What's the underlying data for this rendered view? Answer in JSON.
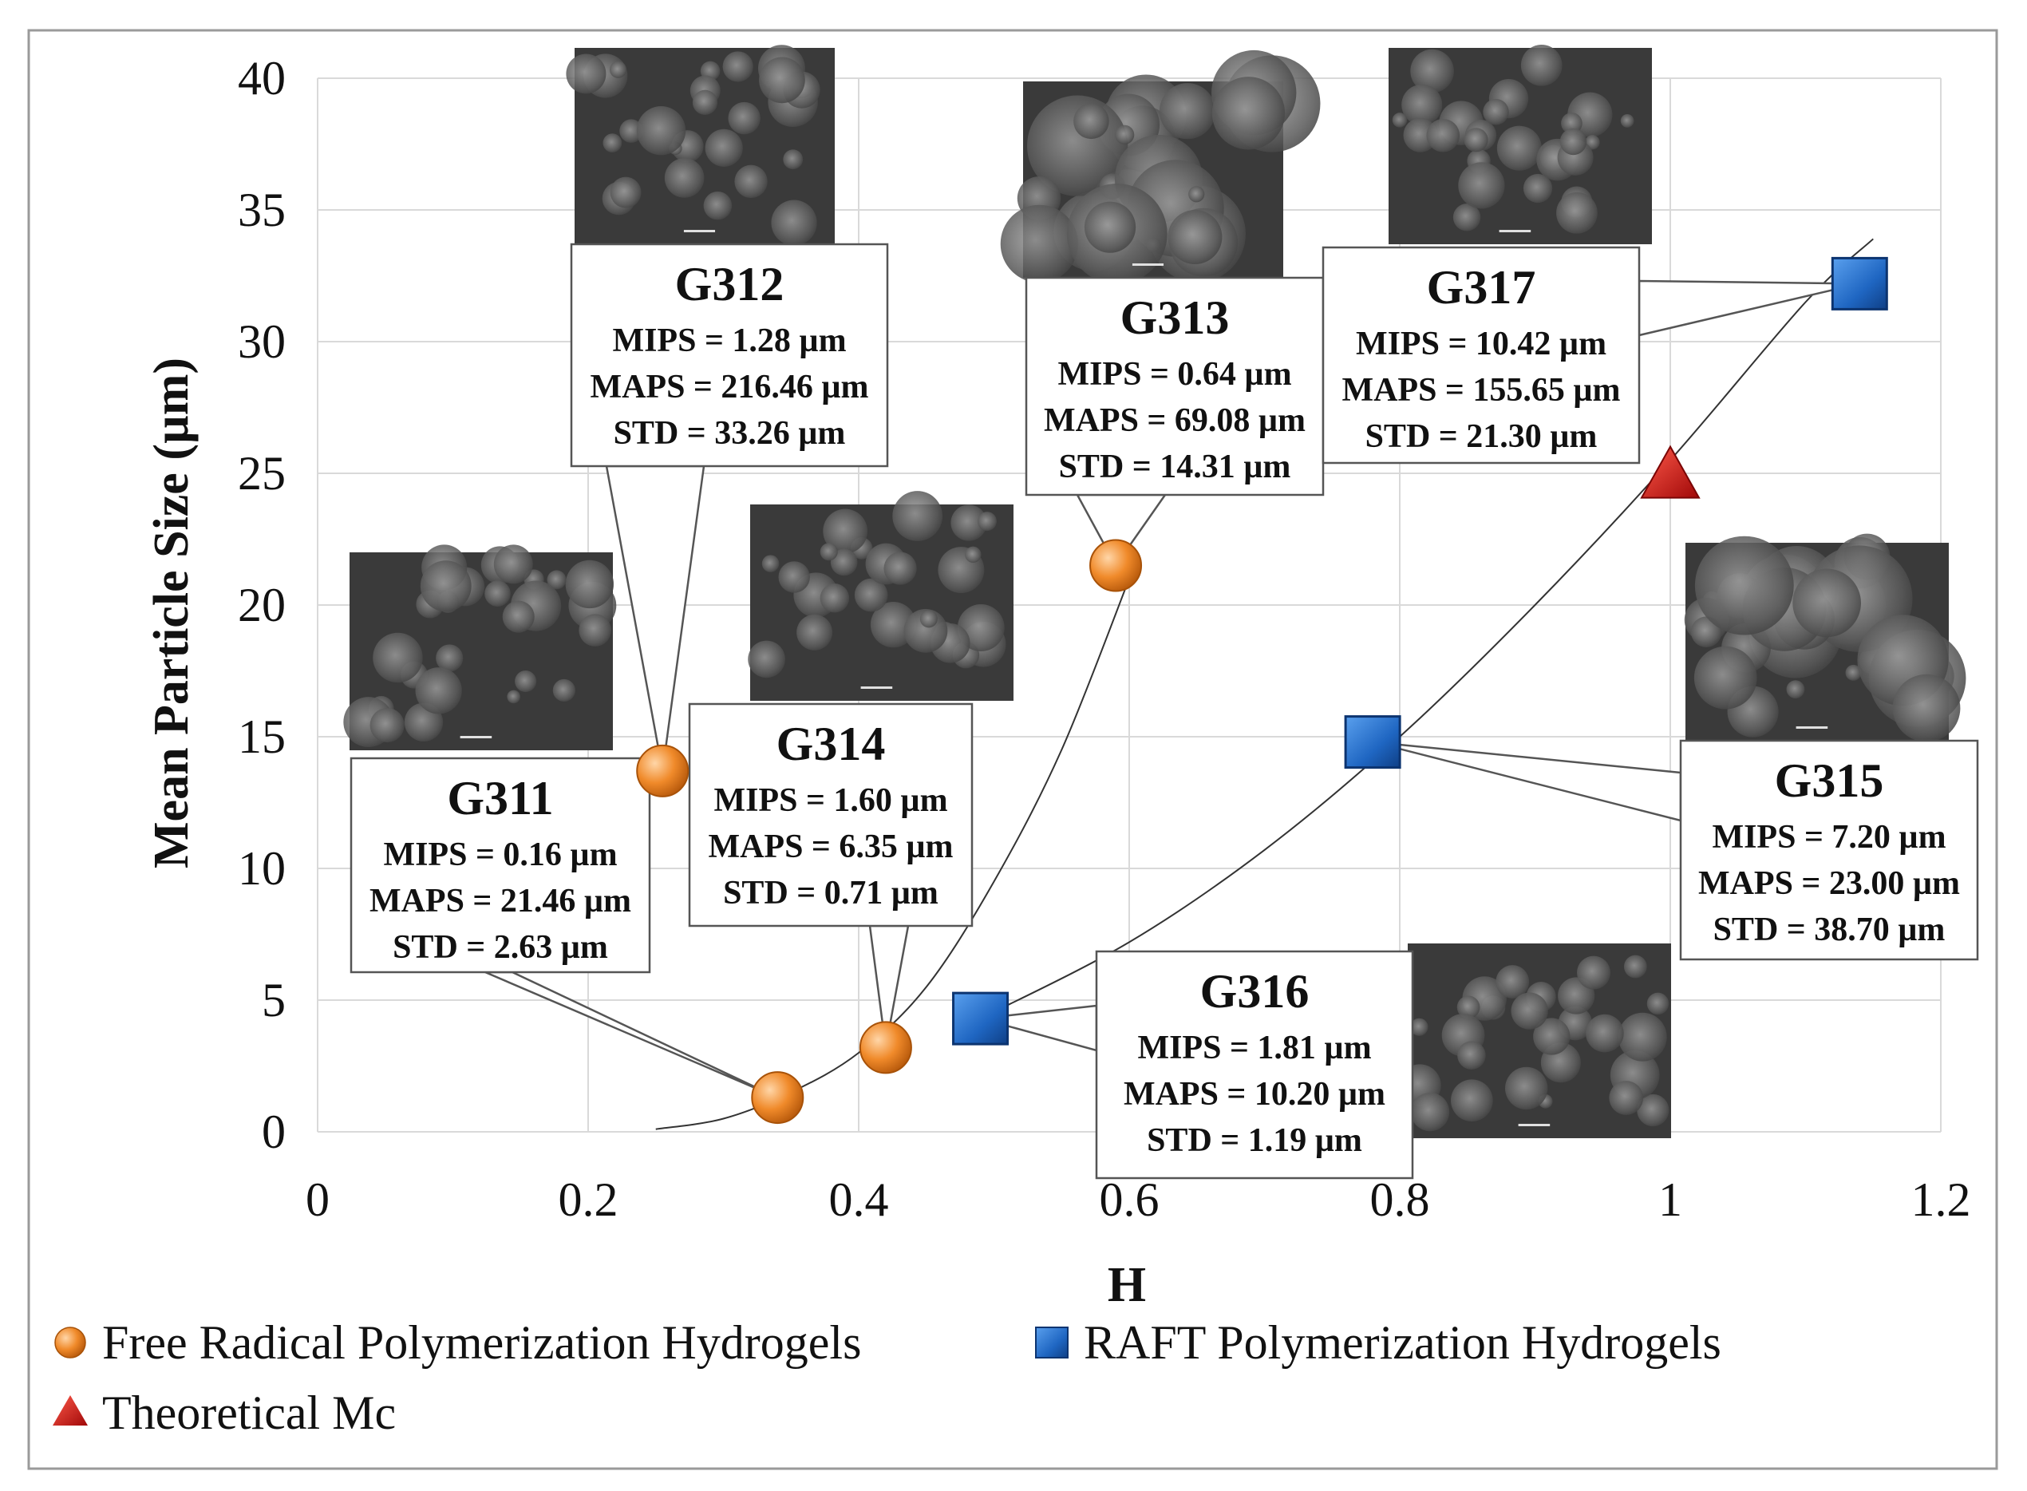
{
  "chart_data": {
    "type": "scatter",
    "title": "",
    "xlabel": "H",
    "ylabel": "Mean Particle Size (µm)",
    "xlim": [
      0,
      1.2
    ],
    "ylim": [
      0,
      40
    ],
    "x_ticks": [
      "0",
      "0.2",
      "0.4",
      "0.6",
      "0.8",
      "1",
      "1.2"
    ],
    "y_ticks": [
      "0",
      "5",
      "10",
      "15",
      "20",
      "25",
      "30",
      "35",
      "40"
    ],
    "grid": true,
    "legend_position": "bottom",
    "series": [
      {
        "name": "Free Radical Polymerization Hydrogels",
        "marker": "circle",
        "color": "#ee7a1e",
        "points": [
          {
            "id": "G311",
            "x": 0.34,
            "y": 1.3
          },
          {
            "id": "G312",
            "x": 0.255,
            "y": 13.7
          },
          {
            "id": "G313",
            "x": 0.59,
            "y": 21.5
          },
          {
            "id": "G314",
            "x": 0.42,
            "y": 3.2
          }
        ]
      },
      {
        "name": "RAFT Polymerization Hydrogels",
        "marker": "square",
        "color": "#2a6fc9",
        "points": [
          {
            "id": "G315",
            "x": 0.78,
            "y": 14.8
          },
          {
            "id": "G316",
            "x": 0.49,
            "y": 4.3
          },
          {
            "id": "G317",
            "x": 1.14,
            "y": 32.2
          }
        ]
      },
      {
        "name": "Theoretical Mc",
        "marker": "triangle",
        "color": "#d01010",
        "points": [
          {
            "id": "",
            "x": 1.0,
            "y": 24.8
          }
        ]
      }
    ],
    "trendlines": [
      {
        "name": "free-radical-trend",
        "x": [
          0.25,
          0.3,
          0.35,
          0.4,
          0.45,
          0.5,
          0.55,
          0.6
        ],
        "y": [
          0.1,
          0.5,
          1.5,
          3.0,
          5.5,
          9.5,
          14.5,
          21.0
        ]
      },
      {
        "name": "raft-trend",
        "x": [
          0.49,
          0.6,
          0.7,
          0.8,
          0.9,
          1.0,
          1.1,
          1.15
        ],
        "y": [
          4.3,
          7.2,
          10.7,
          15.0,
          20.0,
          25.5,
          31.5,
          33.9
        ]
      }
    ],
    "annotations": [
      {
        "id": "G311",
        "title": "G311",
        "lines": [
          "MIPS = 0.16 µm",
          "MAPS = 21.46 µm",
          "STD = 2.63 µm"
        ]
      },
      {
        "id": "G312",
        "title": "G312",
        "lines": [
          "MIPS = 1.28 µm",
          "MAPS = 216.46 µm",
          "STD = 33.26 µm"
        ]
      },
      {
        "id": "G313",
        "title": "G313",
        "lines": [
          "MIPS = 0.64 µm",
          "MAPS = 69.08 µm",
          "STD = 14.31 µm"
        ]
      },
      {
        "id": "G314",
        "title": "G314",
        "lines": [
          "MIPS = 1.60 µm",
          "MAPS = 6.35 µm",
          "STD = 0.71 µm"
        ]
      },
      {
        "id": "G315",
        "title": "G315",
        "lines": [
          "MIPS = 7.20 µm",
          "MAPS = 23.00 µm",
          "STD = 38.70 µm"
        ]
      },
      {
        "id": "G316",
        "title": "G316",
        "lines": [
          "MIPS = 1.81 µm",
          "MAPS = 10.20 µm",
          "STD = 1.19 µm"
        ]
      },
      {
        "id": "G317",
        "title": "G317",
        "lines": [
          "MIPS = 10.42 µm",
          "MAPS = 155.65 µm",
          "STD = 21.30 µm"
        ]
      }
    ],
    "legend": [
      {
        "label": "Free Radical Polymerization Hydrogels",
        "marker": "circle",
        "color": "#ee7a1e"
      },
      {
        "label": "RAFT Polymerization Hydrogels",
        "marker": "square",
        "color": "#2a6fc9"
      },
      {
        "label": "Theoretical Mc",
        "marker": "triangle",
        "color": "#d01010"
      }
    ]
  }
}
